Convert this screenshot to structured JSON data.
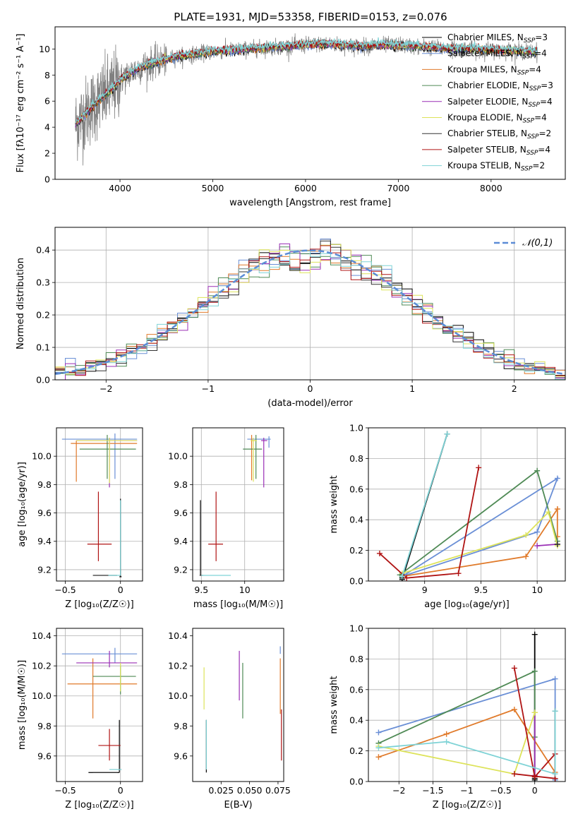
{
  "figure": {
    "title": "PLATE=1931, MJD=53358, FIBERID=0153, z=0.076"
  },
  "styles": [
    {
      "label": "Chabrier MILES, N<sub>SSP</sub>=3",
      "label_text": "Chabrier MILES, NSSP=3",
      "color": "#000000"
    },
    {
      "label_text": "Salpeter MILES, NSSP=4",
      "color": "#6a8fd6"
    },
    {
      "label_text": "Kroupa MILES, NSSP=4",
      "color": "#e07a2a"
    },
    {
      "label_text": "Chabrier ELODIE, NSSP=3",
      "color": "#4f8a55"
    },
    {
      "label_text": "Salpeter ELODIE, NSSP=4",
      "color": "#9a2fb5"
    },
    {
      "label_text": "Kroupa ELODIE, NSSP=4",
      "color": "#dde35a"
    },
    {
      "label_text": "Chabrier STELIB, NSSP=2",
      "color": "#333333"
    },
    {
      "label_text": "Salpeter STELIB, NSSP=4",
      "color": "#b01414"
    },
    {
      "label_text": "Kroupa STELIB, NSSP=2",
      "color": "#7fd3d6"
    }
  ],
  "chart_data": [
    {
      "id": "spectrum",
      "type": "line",
      "title": "PLATE=1931, MJD=53358, FIBERID=0153, z=0.076",
      "xlabel": "wavelength [Angstrom, rest frame]",
      "ylabel": "Flux [fλ10⁻¹⁷ erg cm⁻² s⁻¹ A⁻¹]",
      "xlim": [
        3300,
        8800
      ],
      "ylim": [
        0,
        11.7
      ],
      "xticks": [
        4000,
        5000,
        6000,
        7000,
        8000
      ],
      "yticks": [
        0,
        2,
        4,
        6,
        8,
        10
      ],
      "data_range": [
        3520,
        8500
      ],
      "continuum": {
        "x": [
          3520,
          3600,
          3700,
          3800,
          3900,
          4000,
          4100,
          4200,
          4300,
          4400,
          4500,
          4600,
          4800,
          5000,
          5200,
          5400,
          5600,
          5800,
          6000,
          6200,
          6400,
          6600,
          6800,
          7000,
          7200,
          7400,
          7600,
          7800,
          8000,
          8200,
          8400,
          8500
        ],
        "y": [
          4.2,
          4.8,
          5.6,
          6.2,
          6.8,
          7.6,
          8.1,
          8.5,
          8.8,
          9.0,
          9.2,
          9.4,
          9.6,
          9.8,
          9.9,
          10.0,
          10.1,
          10.2,
          10.3,
          10.4,
          10.3,
          10.2,
          10.3,
          10.3,
          10.2,
          10.1,
          10.0,
          10.0,
          9.9,
          9.9,
          9.8,
          9.8
        ]
      },
      "legend_loc": "right",
      "grid": false
    },
    {
      "id": "residuals",
      "type": "histogram",
      "xlabel": "(data-model)/error",
      "ylabel": "Normed distribution",
      "xlim": [
        -2.5,
        2.5
      ],
      "ylim": [
        0,
        0.47
      ],
      "xticks": [
        -2,
        -1,
        0,
        1,
        2
      ],
      "yticks": [
        0.0,
        0.1,
        0.2,
        0.3,
        0.4
      ],
      "bin_width": 0.1,
      "reference": {
        "name": "𝒩(0,1)",
        "mean": 0,
        "sigma": 1,
        "color": "#5b8cd6"
      },
      "grid": true
    },
    {
      "id": "age-vs-z",
      "type": "scatter",
      "xlabel": "Z [log₁₀(Z/Z☉)]",
      "ylabel": "age  [log₁₀(age/yr)]",
      "xlim": [
        -0.58,
        0.2
      ],
      "ylim": [
        9.12,
        10.2
      ],
      "xticks": [
        -0.5,
        0.0
      ],
      "yticks": [
        9.2,
        9.4,
        9.6,
        9.8,
        10.0
      ],
      "grid": true,
      "points": [
        {
          "x": 0.0,
          "y": 9.15,
          "xerr": [
            0.01,
            0.01
          ],
          "yerr": [
            0.0,
            0.55
          ]
        },
        {
          "x": -0.05,
          "y": 10.12,
          "xerr": [
            0.48,
            0.2
          ],
          "yerr": [
            0.28,
            0.04
          ]
        },
        {
          "x": -0.4,
          "y": 10.09,
          "xerr": [
            0.05,
            0.55
          ],
          "yerr": [
            0.27,
            0.02
          ]
        },
        {
          "x": -0.12,
          "y": 10.05,
          "xerr": [
            0.25,
            0.26
          ],
          "yerr": [
            0.21,
            0.1
          ]
        },
        {
          "x": -0.1,
          "y": 10.11,
          "xerr": [
            0.3,
            0.25
          ],
          "yerr": [
            0.33,
            0.02
          ]
        },
        {
          "x": -0.1,
          "y": 10.11,
          "xerr": [
            0.3,
            0.25
          ],
          "yerr": [
            0.3,
            0.02
          ]
        },
        {
          "x": -0.03,
          "y": 9.16,
          "xerr": [
            0.22,
            0.0
          ],
          "yerr": [
            0.0,
            0.0
          ]
        },
        {
          "x": -0.2,
          "y": 9.38,
          "xerr": [
            0.1,
            0.12
          ],
          "yerr": [
            0.12,
            0.37
          ]
        },
        {
          "x": 0.0,
          "y": 9.16,
          "xerr": [
            0.11,
            0.0
          ],
          "yerr": [
            0.0,
            0.53
          ]
        }
      ]
    },
    {
      "id": "age-vs-mass",
      "type": "scatter",
      "xlabel": "mass [log₁₀(M/M☉)]",
      "ylabel": "",
      "xlim": [
        9.4,
        10.45
      ],
      "ylim": [
        9.12,
        10.2
      ],
      "xticks": [
        9.5,
        10.0
      ],
      "yticks": [
        9.2,
        9.4,
        9.6,
        9.8,
        10.0
      ],
      "grid": true,
      "points": [
        {
          "x": 9.49,
          "y": 9.16,
          "xerr": [
            0,
            0
          ],
          "yerr": [
            0,
            0.53
          ]
        },
        {
          "x": 10.28,
          "y": 10.12,
          "xerr": [
            0.25,
            0.02
          ],
          "yerr": [
            0.06,
            0.02
          ]
        },
        {
          "x": 10.08,
          "y": 10.11,
          "xerr": [
            0.01,
            0.04
          ],
          "yerr": [
            0.28,
            0.04
          ]
        },
        {
          "x": 10.13,
          "y": 10.05,
          "xerr": [
            0.15,
            0.07
          ],
          "yerr": [
            0.21,
            0.1
          ]
        },
        {
          "x": 10.22,
          "y": 10.11,
          "xerr": [
            0.03,
            0.04
          ],
          "yerr": [
            0.33,
            0.02
          ]
        },
        {
          "x": 10.1,
          "y": 10.11,
          "xerr": [
            0.03,
            0.04
          ],
          "yerr": [
            0.29,
            0.02
          ]
        },
        {
          "x": 9.5,
          "y": 9.16,
          "xerr": [
            0.02,
            0.02
          ],
          "yerr": [
            0,
            0
          ]
        },
        {
          "x": 9.67,
          "y": 9.38,
          "xerr": [
            0.09,
            0.08
          ],
          "yerr": [
            0.12,
            0.37
          ]
        },
        {
          "x": 9.5,
          "y": 9.16,
          "xerr": [
            0.0,
            0.34
          ],
          "yerr": [
            0.0,
            0.0
          ]
        }
      ]
    },
    {
      "id": "weight-vs-age",
      "type": "line",
      "xlabel": "age  [log₁₀(age/yr)]",
      "ylabel": "mass weight",
      "xlim": [
        8.5,
        10.25
      ],
      "ylim": [
        0,
        1.0
      ],
      "xticks": [
        9.0,
        9.5,
        10.0
      ],
      "yticks": [
        0.0,
        0.2,
        0.4,
        0.6,
        0.8,
        1.0
      ],
      "grid": true,
      "series": [
        {
          "x": [
            8.8,
            9.2,
            8.8
          ],
          "y": [
            0.01,
            0.96,
            0.02
          ]
        },
        {
          "x": [
            8.8,
            10.0,
            10.18,
            8.8
          ],
          "y": [
            0.03,
            0.32,
            0.67,
            0.03
          ]
        },
        {
          "x": [
            8.8,
            9.9,
            10.18,
            10.18
          ],
          "y": [
            0.03,
            0.16,
            0.47,
            0.29
          ]
        },
        {
          "x": [
            8.78,
            10.0,
            10.18
          ],
          "y": [
            0.04,
            0.72,
            0.26
          ]
        },
        {
          "x": [
            10.18,
            10.0
          ],
          "y": [
            0.24,
            0.23
          ]
        },
        {
          "x": [
            8.8,
            9.9,
            10.1,
            10.18
          ],
          "y": [
            0.05,
            0.3,
            0.45,
            0.23
          ]
        },
        {
          "x": [
            10.18,
            10.18
          ],
          "y": [
            0.24,
            0.24
          ]
        },
        {
          "x": [
            8.6,
            8.84,
            9.3,
            9.48
          ],
          "y": [
            0.18,
            0.02,
            0.05,
            0.74
          ]
        },
        {
          "x": [
            8.8,
            9.2
          ],
          "y": [
            0.03,
            0.96
          ]
        }
      ]
    },
    {
      "id": "mass-vs-z",
      "type": "scatter",
      "xlabel": "Z [log₁₀(Z/Z☉)]",
      "ylabel": "mass [log₁₀(M/M☉)]",
      "xlim": [
        -0.58,
        0.2
      ],
      "ylim": [
        9.43,
        10.45
      ],
      "xticks": [
        -0.5,
        0.0
      ],
      "yticks": [
        9.6,
        9.8,
        10.0,
        10.2,
        10.4
      ],
      "grid": true,
      "points": [
        {
          "x": -0.01,
          "y": 9.49,
          "xerr": [
            0.28,
            0.0
          ],
          "yerr": [
            0.0,
            0.35
          ]
        },
        {
          "x": -0.05,
          "y": 10.28,
          "xerr": [
            0.48,
            0.2
          ],
          "yerr": [
            0.06,
            0.04
          ]
        },
        {
          "x": -0.25,
          "y": 10.08,
          "xerr": [
            0.23,
            0.4
          ],
          "yerr": [
            0.23,
            0.17
          ]
        },
        {
          "x": 0.0,
          "y": 10.13,
          "xerr": [
            0.25,
            0.14
          ],
          "yerr": [
            0.12,
            0.07
          ]
        },
        {
          "x": -0.1,
          "y": 10.22,
          "xerr": [
            0.3,
            0.25
          ],
          "yerr": [
            0.03,
            0.08
          ]
        },
        {
          "x": 0.0,
          "y": 10.11,
          "xerr": [
            0.0,
            0.0
          ],
          "yerr": [
            0.08,
            0.11
          ]
        },
        {
          "x": -0.03,
          "y": 9.49,
          "xerr": [
            0.22,
            0.0
          ],
          "yerr": [
            0.0,
            0.0
          ]
        },
        {
          "x": -0.1,
          "y": 9.67,
          "xerr": [
            0.1,
            0.1
          ],
          "yerr": [
            0.1,
            0.11
          ]
        },
        {
          "x": -0.05,
          "y": 9.51,
          "xerr": [
            0.05,
            0.06
          ],
          "yerr": [
            0.0,
            0.0
          ]
        }
      ]
    },
    {
      "id": "mass-vs-ebv",
      "type": "scatter",
      "xlabel": "E(B-V)",
      "ylabel": "",
      "xlim": [
        0.0,
        0.08
      ],
      "ylim": [
        9.43,
        10.45
      ],
      "xticks": [
        0.025,
        0.05,
        0.075
      ],
      "xtick_labels": [
        "0.025",
        "0.050",
        "0.075"
      ],
      "yticks": [
        9.6,
        9.8,
        10.0,
        10.2,
        10.4
      ],
      "grid": false,
      "points": [
        {
          "x": 0.012,
          "y": 9.49,
          "xerr": [
            0,
            0
          ],
          "yerr": [
            0.0,
            0.35
          ]
        },
        {
          "x": 0.077,
          "y": 10.28,
          "xerr": [
            0,
            0
          ],
          "yerr": [
            0.0,
            0.05
          ]
        },
        {
          "x": 0.077,
          "y": 10.08,
          "xerr": [
            0,
            0
          ],
          "yerr": [
            0.2,
            0.17
          ]
        },
        {
          "x": 0.044,
          "y": 10.13,
          "xerr": [
            0,
            0
          ],
          "yerr": [
            0.28,
            0.09
          ]
        },
        {
          "x": 0.041,
          "y": 10.22,
          "xerr": [
            0,
            0
          ],
          "yerr": [
            0.25,
            0.08
          ]
        },
        {
          "x": 0.01,
          "y": 10.11,
          "xerr": [
            0,
            0
          ],
          "yerr": [
            0.2,
            0.08
          ]
        },
        {
          "x": 0.012,
          "y": 9.49,
          "xerr": [
            0,
            0
          ],
          "yerr": [
            0.0,
            0.0
          ]
        },
        {
          "x": 0.078,
          "y": 9.67,
          "xerr": [
            0,
            0
          ],
          "yerr": [
            0.1,
            0.24
          ]
        },
        {
          "x": 0.012,
          "y": 9.51,
          "xerr": [
            0,
            0
          ],
          "yerr": [
            0.0,
            0.33
          ]
        }
      ]
    },
    {
      "id": "weight-vs-z",
      "type": "line",
      "xlabel": "Z [log₁₀(Z/Z☉)]",
      "ylabel": "mass weight",
      "xlim": [
        -2.45,
        0.45
      ],
      "ylim": [
        0,
        1.0
      ],
      "xticks": [
        -2.0,
        -1.5,
        -1.0,
        -0.5,
        0.0
      ],
      "yticks": [
        0.0,
        0.2,
        0.4,
        0.6,
        0.8,
        1.0
      ],
      "grid": true,
      "series": [
        {
          "x": [
            0.0,
            0.0,
            0.0
          ],
          "y": [
            0.01,
            0.96,
            0.02
          ]
        },
        {
          "x": [
            -2.3,
            0.3,
            0.3
          ],
          "y": [
            0.32,
            0.67,
            0.01
          ]
        },
        {
          "x": [
            -2.3,
            -1.3,
            -0.3,
            0.3
          ],
          "y": [
            0.16,
            0.31,
            0.47,
            0.06
          ]
        },
        {
          "x": [
            -2.3,
            0.0,
            0.0
          ],
          "y": [
            0.25,
            0.72,
            0.29
          ]
        },
        {
          "x": [
            0.0,
            0.0
          ],
          "y": [
            0.45,
            0.04
          ]
        },
        {
          "x": [
            -2.3,
            -0.3,
            0.0,
            0.0
          ],
          "y": [
            0.23,
            0.05,
            0.45,
            0.45
          ]
        },
        {
          "x": [
            0.3,
            0.3
          ],
          "y": [
            0.46,
            0.02
          ]
        },
        {
          "x": [
            -0.3,
            0.0,
            0.3,
            0.3,
            -0.3
          ],
          "y": [
            0.74,
            0.03,
            0.18,
            0.02,
            0.05
          ]
        },
        {
          "x": [
            -2.3,
            -1.3,
            0.3,
            0.3
          ],
          "y": [
            0.22,
            0.26,
            0.05,
            0.46
          ]
        }
      ]
    }
  ]
}
